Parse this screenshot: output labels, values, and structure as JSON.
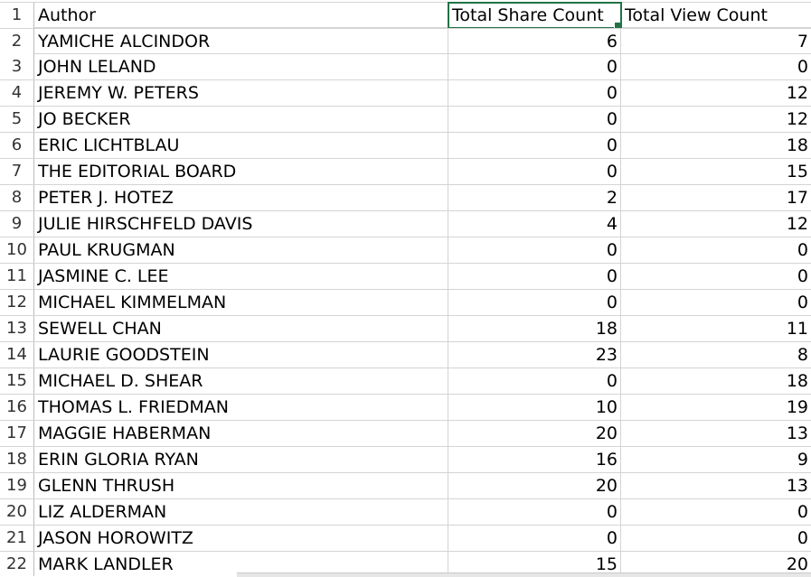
{
  "header": {
    "row_number": "1",
    "author": "Author",
    "share": "Total Share Count",
    "view": "Total View Count"
  },
  "rows": [
    {
      "n": "2",
      "author": "YAMICHE ALCINDOR",
      "share": "6",
      "view": "7"
    },
    {
      "n": "3",
      "author": "JOHN LELAND",
      "share": "0",
      "view": "0"
    },
    {
      "n": "4",
      "author": "JEREMY W. PETERS",
      "share": "0",
      "view": "12"
    },
    {
      "n": "5",
      "author": "JO BECKER",
      "share": "0",
      "view": "12"
    },
    {
      "n": "6",
      "author": "ERIC LICHTBLAU",
      "share": "0",
      "view": "18"
    },
    {
      "n": "7",
      "author": "THE EDITORIAL BOARD",
      "share": "0",
      "view": "15"
    },
    {
      "n": "8",
      "author": "PETER J. HOTEZ",
      "share": "2",
      "view": "17"
    },
    {
      "n": "9",
      "author": "JULIE HIRSCHFELD DAVIS",
      "share": "4",
      "view": "12"
    },
    {
      "n": "10",
      "author": "PAUL KRUGMAN",
      "share": "0",
      "view": "0"
    },
    {
      "n": "11",
      "author": "JASMINE C. LEE",
      "share": "0",
      "view": "0"
    },
    {
      "n": "12",
      "author": "MICHAEL KIMMELMAN",
      "share": "0",
      "view": "0"
    },
    {
      "n": "13",
      "author": "SEWELL CHAN",
      "share": "18",
      "view": "11"
    },
    {
      "n": "14",
      "author": "LAURIE GOODSTEIN",
      "share": "23",
      "view": "8"
    },
    {
      "n": "15",
      "author": "MICHAEL D. SHEAR",
      "share": "0",
      "view": "18"
    },
    {
      "n": "16",
      "author": "THOMAS L. FRIEDMAN",
      "share": "10",
      "view": "19"
    },
    {
      "n": "17",
      "author": "MAGGIE HABERMAN",
      "share": "20",
      "view": "13"
    },
    {
      "n": "18",
      "author": "ERIN GLORIA RYAN",
      "share": "16",
      "view": "9"
    },
    {
      "n": "19",
      "author": "GLENN THRUSH",
      "share": "20",
      "view": "13"
    },
    {
      "n": "20",
      "author": "LIZ ALDERMAN",
      "share": "0",
      "view": "0"
    },
    {
      "n": "21",
      "author": "JASON HOROWITZ",
      "share": "0",
      "view": "0"
    },
    {
      "n": "22",
      "author": "MARK LANDLER",
      "share": "15",
      "view": "20"
    }
  ],
  "colors": {
    "selection": "#217346",
    "gridline": "#d4d4d4"
  }
}
